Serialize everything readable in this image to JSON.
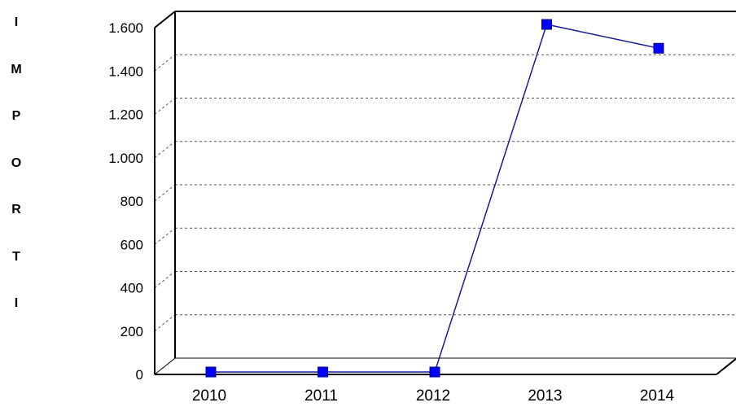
{
  "chart_data": {
    "type": "line",
    "title": "",
    "xlabel": "",
    "ylabel": "IMPORTI",
    "categories": [
      "2010",
      "2011",
      "2012",
      "2013",
      "2014"
    ],
    "series": [
      {
        "values": [
          0,
          0,
          0,
          1540,
          1430
        ]
      }
    ],
    "ylim": [
      0,
      1600
    ],
    "yticks": [
      0,
      200,
      400,
      600,
      800,
      1000,
      1200,
      1400,
      1600
    ],
    "ytick_labels": [
      "0",
      "200",
      "400",
      "600",
      "800",
      "1.000",
      "1.200",
      "1.400",
      "1.600"
    ],
    "grid": "horizontal dashed",
    "legend": "none",
    "style": "3d-frame",
    "colors": {
      "series": "#0000ff",
      "line": "#1a1a9a",
      "marker_border": "#000080",
      "axis": "#000000",
      "grid": "#555555",
      "background": "#ffffff",
      "text": "#000000"
    }
  }
}
